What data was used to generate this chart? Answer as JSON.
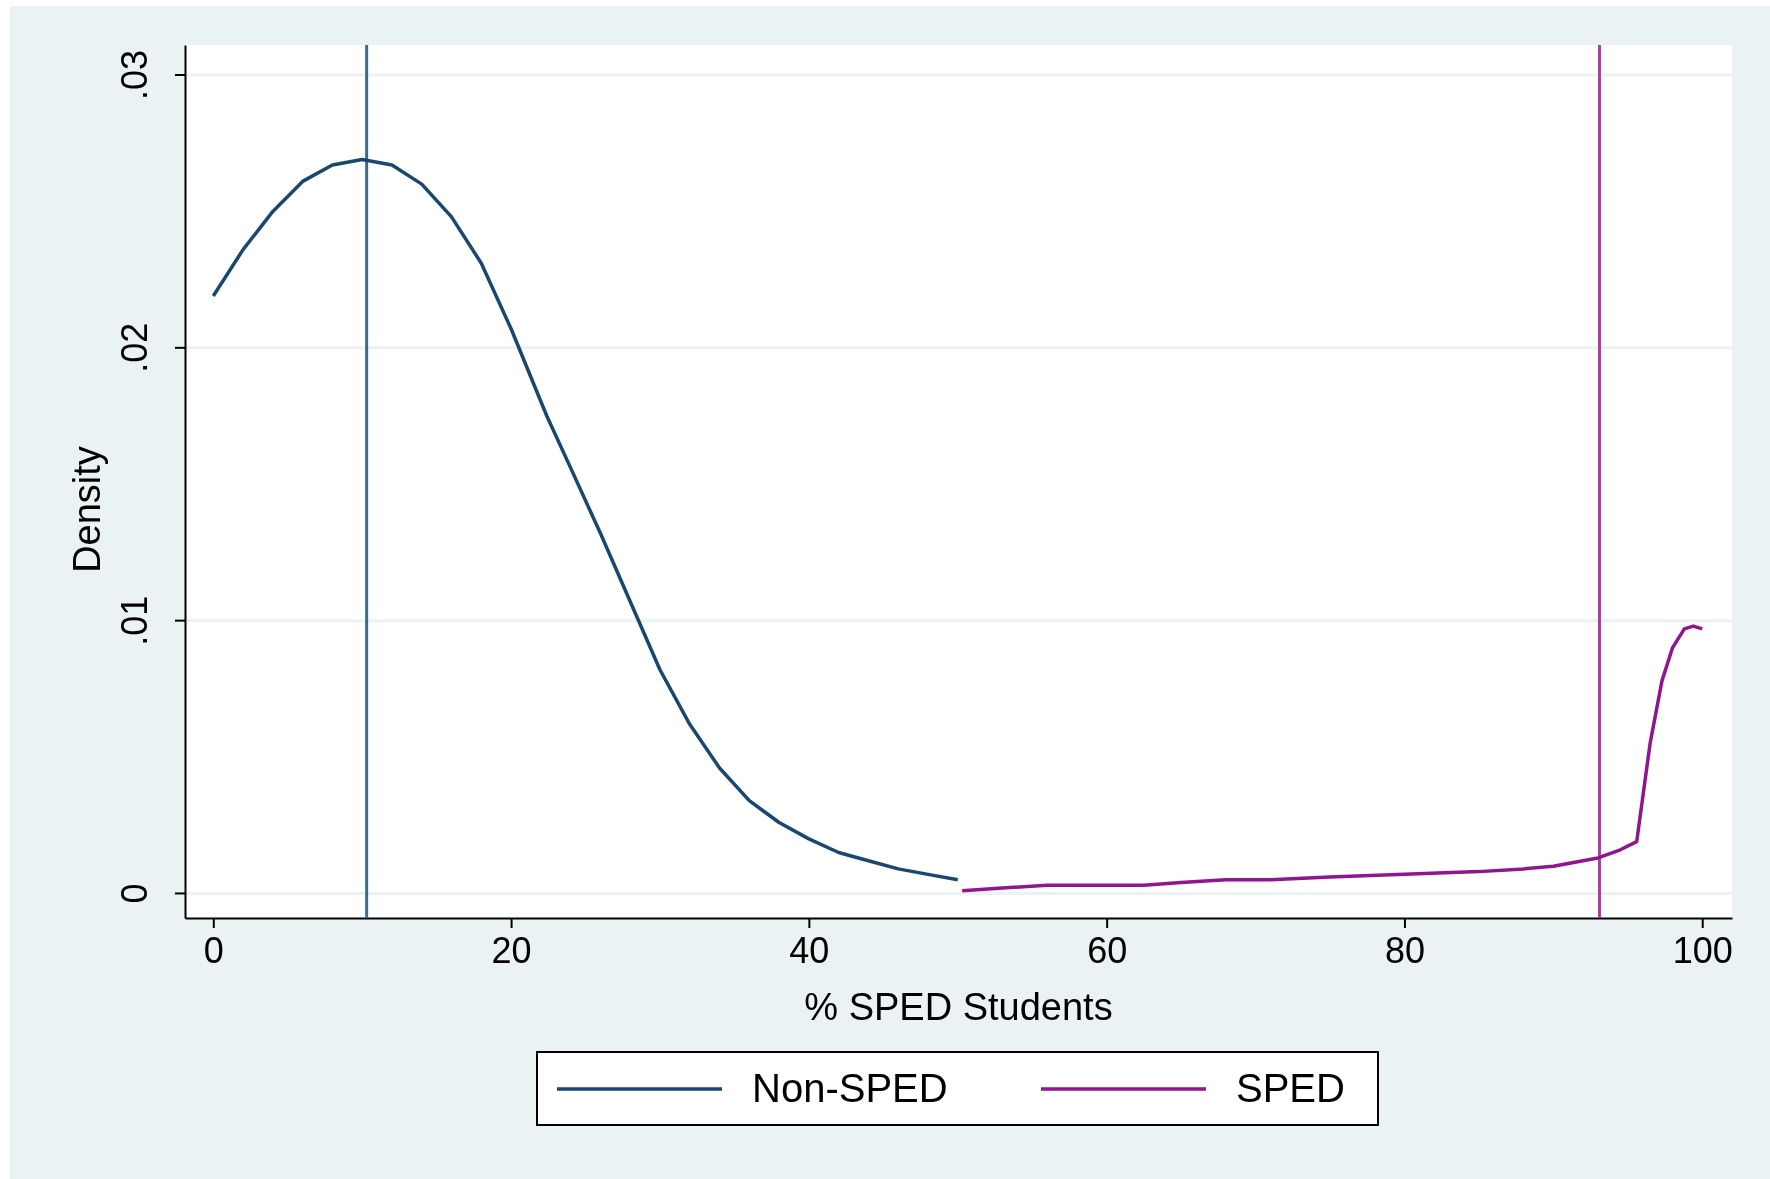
{
  "chart_data": {
    "type": "line",
    "xlabel": "% SPED Students",
    "ylabel": "Density",
    "xlim": [
      -1.9,
      102
    ],
    "ylim": [
      -0.0009,
      0.0311
    ],
    "xticks": [
      0,
      20,
      40,
      60,
      80,
      100
    ],
    "yticks": [
      {
        "value": 0,
        "label": "0"
      },
      {
        "value": 0.01,
        "label": ".01"
      },
      {
        "value": 0.02,
        "label": ".02"
      },
      {
        "value": 0.03,
        "label": ".03"
      }
    ],
    "grid": "y",
    "legend": "bottom",
    "series": [
      {
        "name": "Non-SPED",
        "color": "#1a476f",
        "x": [
          0,
          2,
          4,
          6,
          8,
          10,
          12,
          14,
          16,
          18,
          20,
          22.4,
          24,
          26,
          28,
          30,
          32,
          34,
          36,
          38,
          40,
          42,
          44,
          46,
          48,
          50
        ],
        "values": [
          0.0219,
          0.0236,
          0.025,
          0.0261,
          0.0267,
          0.0269,
          0.0267,
          0.026,
          0.0248,
          0.0231,
          0.0207,
          0.0175,
          0.0156,
          0.0132,
          0.0107,
          0.0082,
          0.0062,
          0.0046,
          0.0034,
          0.0026,
          0.002,
          0.0015,
          0.0012,
          0.0009,
          0.0007,
          0.0005
        ]
      },
      {
        "name": "SPED",
        "color": "#90168f",
        "x": [
          50.3,
          53,
          56,
          60,
          62.5,
          65,
          68,
          70,
          71,
          75,
          80,
          85,
          88,
          90,
          92,
          93,
          94.5,
          95.6,
          96.5,
          97.3,
          98,
          98.8,
          99.4,
          100
        ],
        "values": [
          0.0001,
          0.0002,
          0.0003,
          0.0003,
          0.0003,
          0.0004,
          0.0005,
          0.0005,
          0.0005,
          0.0006,
          0.0007,
          0.0008,
          0.0009,
          0.001,
          0.0012,
          0.0013,
          0.0016,
          0.0019,
          0.0055,
          0.0078,
          0.009,
          0.0097,
          0.0098,
          0.0097
        ]
      }
    ],
    "ref_lines": [
      {
        "axis": "x",
        "value": 10.3,
        "color": "#3d6a92"
      },
      {
        "axis": "x",
        "value": 93.1,
        "color": "#a83fa8"
      }
    ]
  }
}
